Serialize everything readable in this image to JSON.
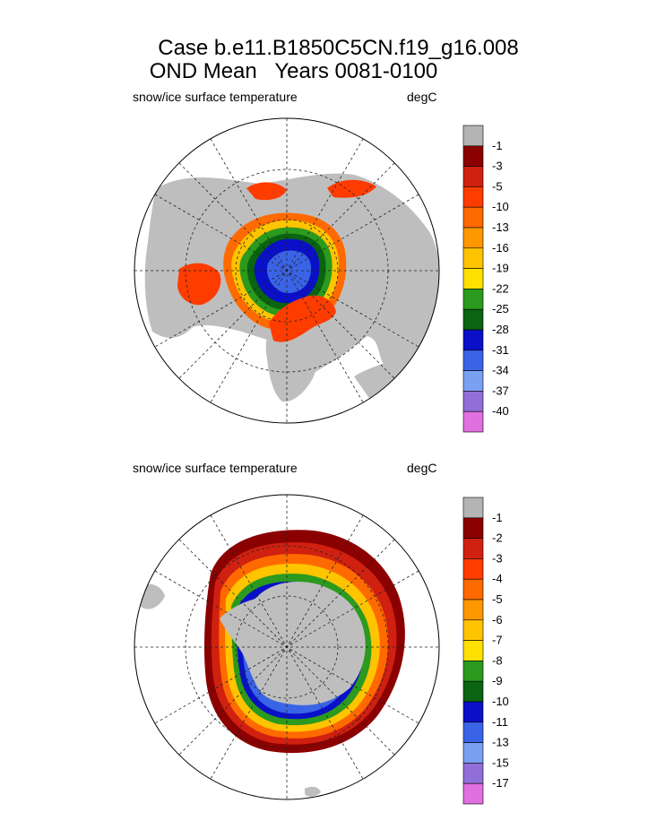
{
  "header": {
    "title_line1": "Case b.e11.B1850C5CN.f19_g16.008",
    "title_line2": "OND Mean   Years 0081-0100"
  },
  "panels": [
    {
      "id": "north",
      "variable_label": "snow/ice surface temperature",
      "units_label": "degC",
      "colorbar_labels": [
        "-1",
        "-3",
        "-5",
        "-10",
        "-13",
        "-16",
        "-19",
        "-22",
        "-25",
        "-28",
        "-31",
        "-34",
        "-37",
        "-40"
      ]
    },
    {
      "id": "south",
      "variable_label": "snow/ice surface temperature",
      "units_label": "degC",
      "colorbar_labels": [
        "-1",
        "-2",
        "-3",
        "-4",
        "-5",
        "-6",
        "-7",
        "-8",
        "-9",
        "-10",
        "-11",
        "-13",
        "-15",
        "-17"
      ]
    }
  ],
  "colors": {
    "land": "#bebebe",
    "missing": "#b4b4b4",
    "palette": [
      "#b4b4b4",
      "#8b0000",
      "#d02010",
      "#ff3c00",
      "#ff6a00",
      "#ff9800",
      "#ffc400",
      "#ffe000",
      "#2b9a1e",
      "#0a6410",
      "#0a10c8",
      "#3a64e6",
      "#7aa0f4",
      "#9070d8",
      "#e070e0"
    ]
  }
}
